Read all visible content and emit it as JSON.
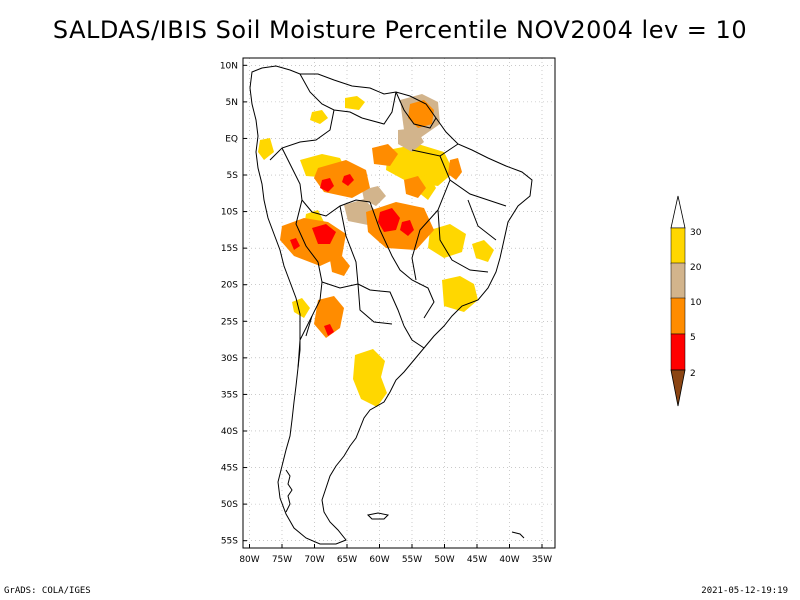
{
  "title": "SALDAS/IBIS Soil Moisture Percentile NOV2004 lev = 10",
  "footer": {
    "left": "GrADS: COLA/IGES",
    "right": "2021-05-12-19:19"
  },
  "map": {
    "region": "South America",
    "lat_labels": [
      "10N",
      "5N",
      "EQ",
      "5S",
      "10S",
      "15S",
      "20S",
      "25S",
      "30S",
      "35S",
      "40S",
      "45S",
      "50S",
      "55S"
    ],
    "lon_labels": [
      "80W",
      "75W",
      "70W",
      "65W",
      "60W",
      "55W",
      "50W",
      "45W",
      "40W",
      "35W"
    ],
    "lat_values": [
      10,
      5,
      0,
      -5,
      -10,
      -15,
      -20,
      -25,
      -30,
      -35,
      -40,
      -45,
      -50,
      -55
    ],
    "lon_values": [
      -80,
      -75,
      -70,
      -65,
      -60,
      -55,
      -50,
      -45,
      -40,
      -35
    ],
    "lat_range": [
      -56,
      11
    ],
    "lon_range": [
      -81,
      -33
    ]
  },
  "legend": {
    "labels": [
      "2",
      "5",
      "10",
      "20",
      "30"
    ],
    "colors": {
      "below_2": "#8b4513",
      "2_5": "#ff0000",
      "5_10": "#ff8c00",
      "10_20": "#d2b48c",
      "20_30": "#ffd700",
      "above_30": "#ffffff"
    }
  }
}
